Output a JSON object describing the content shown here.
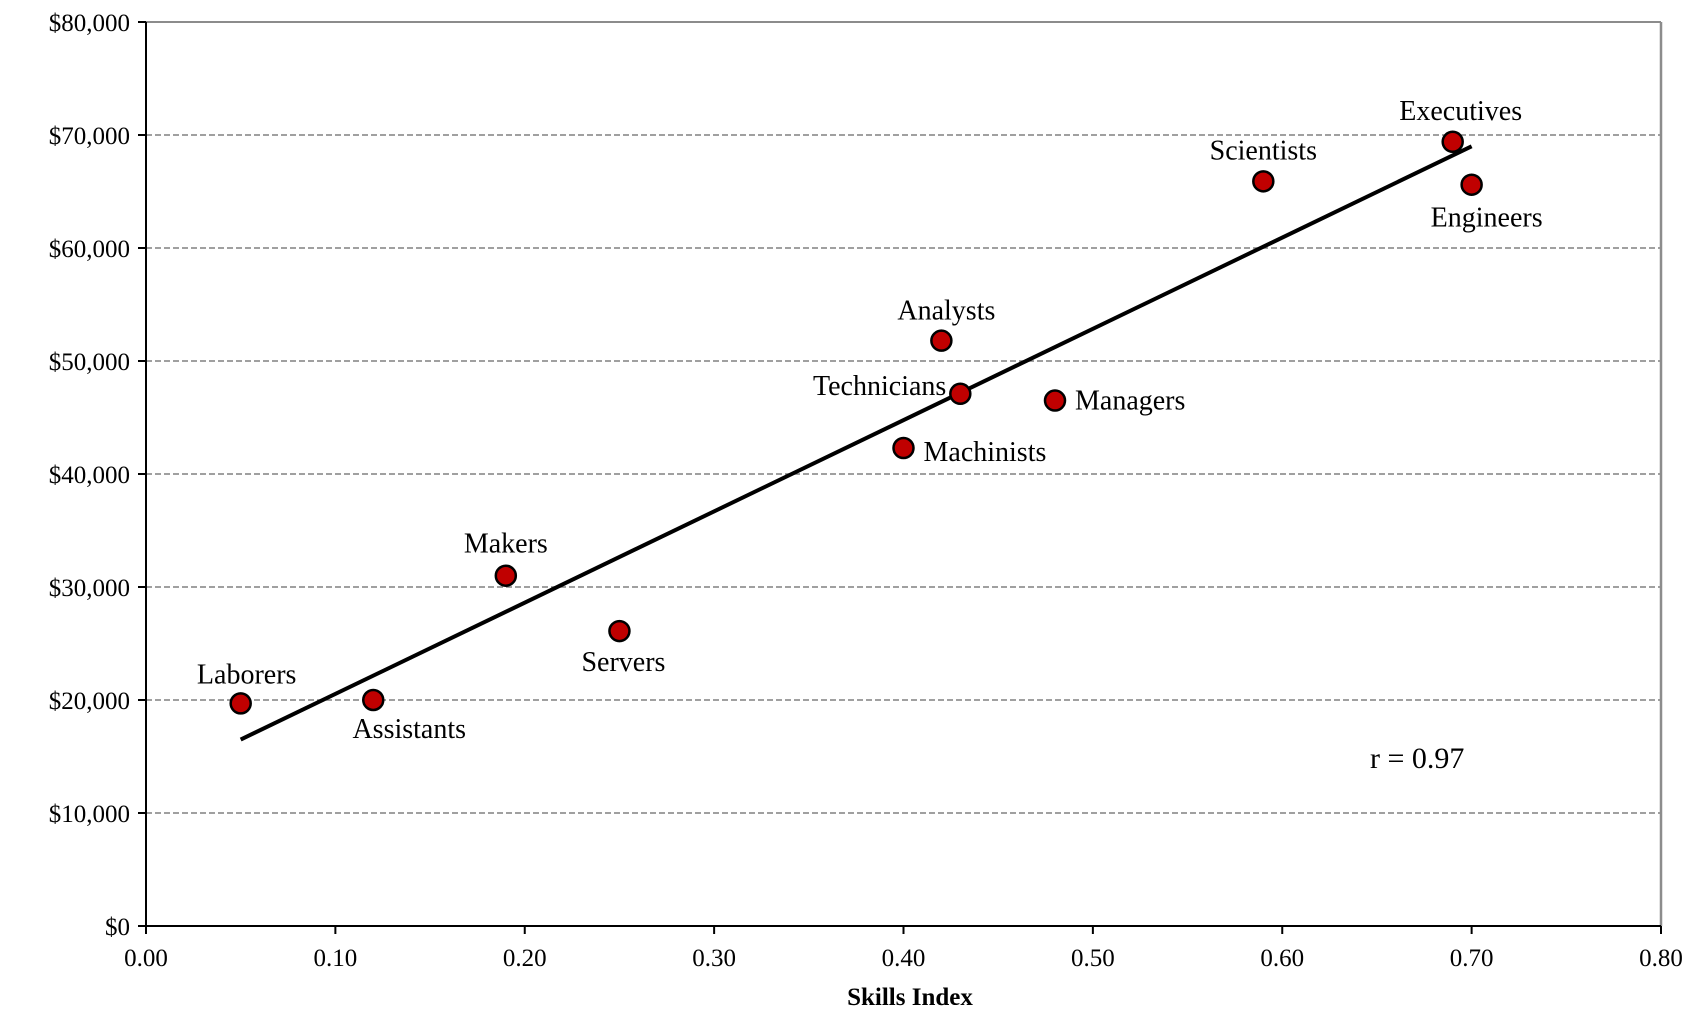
{
  "chart_data": {
    "type": "scatter",
    "title": "",
    "xlabel": "Skills Index",
    "ylabel": "",
    "xlim": [
      0,
      0.8
    ],
    "ylim": [
      0,
      80000
    ],
    "x_ticks": [
      "0.00",
      "0.10",
      "0.20",
      "0.30",
      "0.40",
      "0.50",
      "0.60",
      "0.70",
      "0.80"
    ],
    "y_ticks": [
      "$0",
      "$10,000",
      "$20,000",
      "$30,000",
      "$40,000",
      "$50,000",
      "$60,000",
      "$70,000",
      "$80,000"
    ],
    "grid": "horizontal dashed",
    "marker_color": "#c00000",
    "points": [
      {
        "label": "Laborers",
        "x": 0.05,
        "y": 19700
      },
      {
        "label": "Assistants",
        "x": 0.12,
        "y": 20000
      },
      {
        "label": "Makers",
        "x": 0.19,
        "y": 31000
      },
      {
        "label": "Servers",
        "x": 0.25,
        "y": 26100
      },
      {
        "label": "Machinists",
        "x": 0.4,
        "y": 42300
      },
      {
        "label": "Analysts",
        "x": 0.42,
        "y": 51800
      },
      {
        "label": "Technicians",
        "x": 0.43,
        "y": 47100
      },
      {
        "label": "Managers",
        "x": 0.48,
        "y": 46500
      },
      {
        "label": "Scientists",
        "x": 0.59,
        "y": 65900
      },
      {
        "label": "Executives",
        "x": 0.69,
        "y": 69400
      },
      {
        "label": "Engineers",
        "x": 0.7,
        "y": 65600
      }
    ],
    "trendline": {
      "x": [
        0.05,
        0.7
      ],
      "y": [
        16500,
        69000
      ]
    },
    "annotations": [
      "r = 0.97"
    ]
  }
}
